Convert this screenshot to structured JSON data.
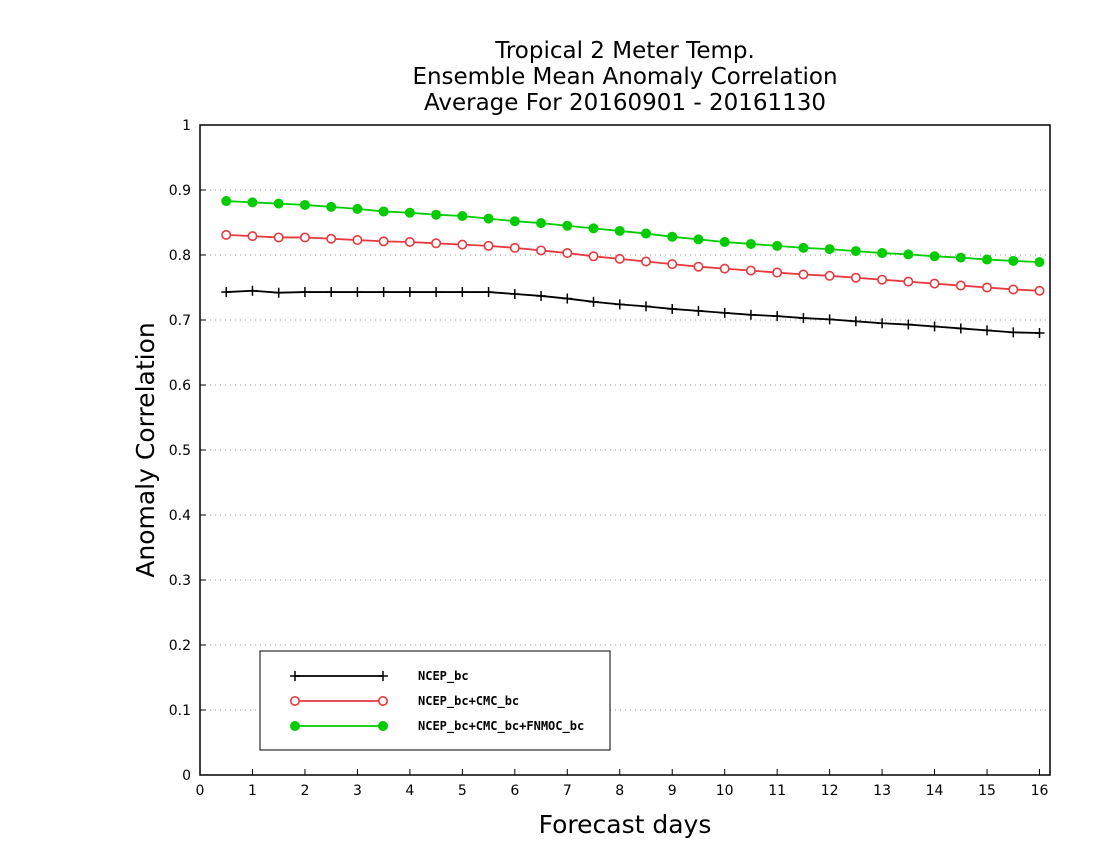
{
  "chart_data": {
    "type": "line",
    "title_lines": [
      "Tropical 2 Meter Temp.",
      "Ensemble Mean Anomaly Correlation",
      "Average For 20160901 - 20161130"
    ],
    "xlabel": "Forecast days",
    "ylabel": "Anomaly Correlation",
    "xlim": [
      0,
      16.2
    ],
    "ylim": [
      0,
      1
    ],
    "x_ticks": [
      "0",
      "1",
      "2",
      "3",
      "4",
      "5",
      "6",
      "7",
      "8",
      "9",
      "10",
      "11",
      "12",
      "13",
      "14",
      "15",
      "16"
    ],
    "y_ticks": [
      "0",
      "0.1",
      "0.2",
      "0.3",
      "0.4",
      "0.5",
      "0.6",
      "0.7",
      "0.8",
      "0.9",
      "1"
    ],
    "grid": "horizontal dotted",
    "legend_position": "bottom-left",
    "x": [
      0.5,
      1,
      1.5,
      2,
      2.5,
      3,
      3.5,
      4,
      4.5,
      5,
      5.5,
      6,
      6.5,
      7,
      7.5,
      8,
      8.5,
      9,
      9.5,
      10,
      10.5,
      11,
      11.5,
      12,
      12.5,
      13,
      13.5,
      14,
      14.5,
      15,
      15.5,
      16
    ],
    "series": [
      {
        "name": "NCEP_bc",
        "color": "#000000",
        "marker": "plus",
        "values": [
          0.743,
          0.745,
          0.742,
          0.743,
          0.743,
          0.743,
          0.743,
          0.743,
          0.743,
          0.743,
          0.743,
          0.74,
          0.737,
          0.733,
          0.728,
          0.724,
          0.721,
          0.717,
          0.714,
          0.711,
          0.708,
          0.706,
          0.703,
          0.701,
          0.698,
          0.695,
          0.693,
          0.69,
          0.687,
          0.684,
          0.681,
          0.68
        ]
      },
      {
        "name": "NCEP_bc+CMC_bc",
        "color": "#e8383d",
        "marker": "open-circle",
        "values": [
          0.831,
          0.829,
          0.827,
          0.827,
          0.825,
          0.823,
          0.821,
          0.82,
          0.818,
          0.816,
          0.814,
          0.811,
          0.807,
          0.803,
          0.798,
          0.794,
          0.79,
          0.786,
          0.782,
          0.779,
          0.776,
          0.773,
          0.77,
          0.768,
          0.765,
          0.762,
          0.759,
          0.756,
          0.753,
          0.75,
          0.747,
          0.745
        ]
      },
      {
        "name": "NCEP_bc+CMC_bc+FNMOC_bc",
        "color": "#00cc00",
        "marker": "filled-circle",
        "values": [
          0.883,
          0.881,
          0.879,
          0.877,
          0.874,
          0.871,
          0.867,
          0.865,
          0.862,
          0.86,
          0.856,
          0.852,
          0.849,
          0.845,
          0.841,
          0.837,
          0.833,
          0.828,
          0.824,
          0.82,
          0.817,
          0.814,
          0.811,
          0.809,
          0.806,
          0.803,
          0.801,
          0.798,
          0.796,
          0.793,
          0.791,
          0.789
        ]
      }
    ]
  }
}
